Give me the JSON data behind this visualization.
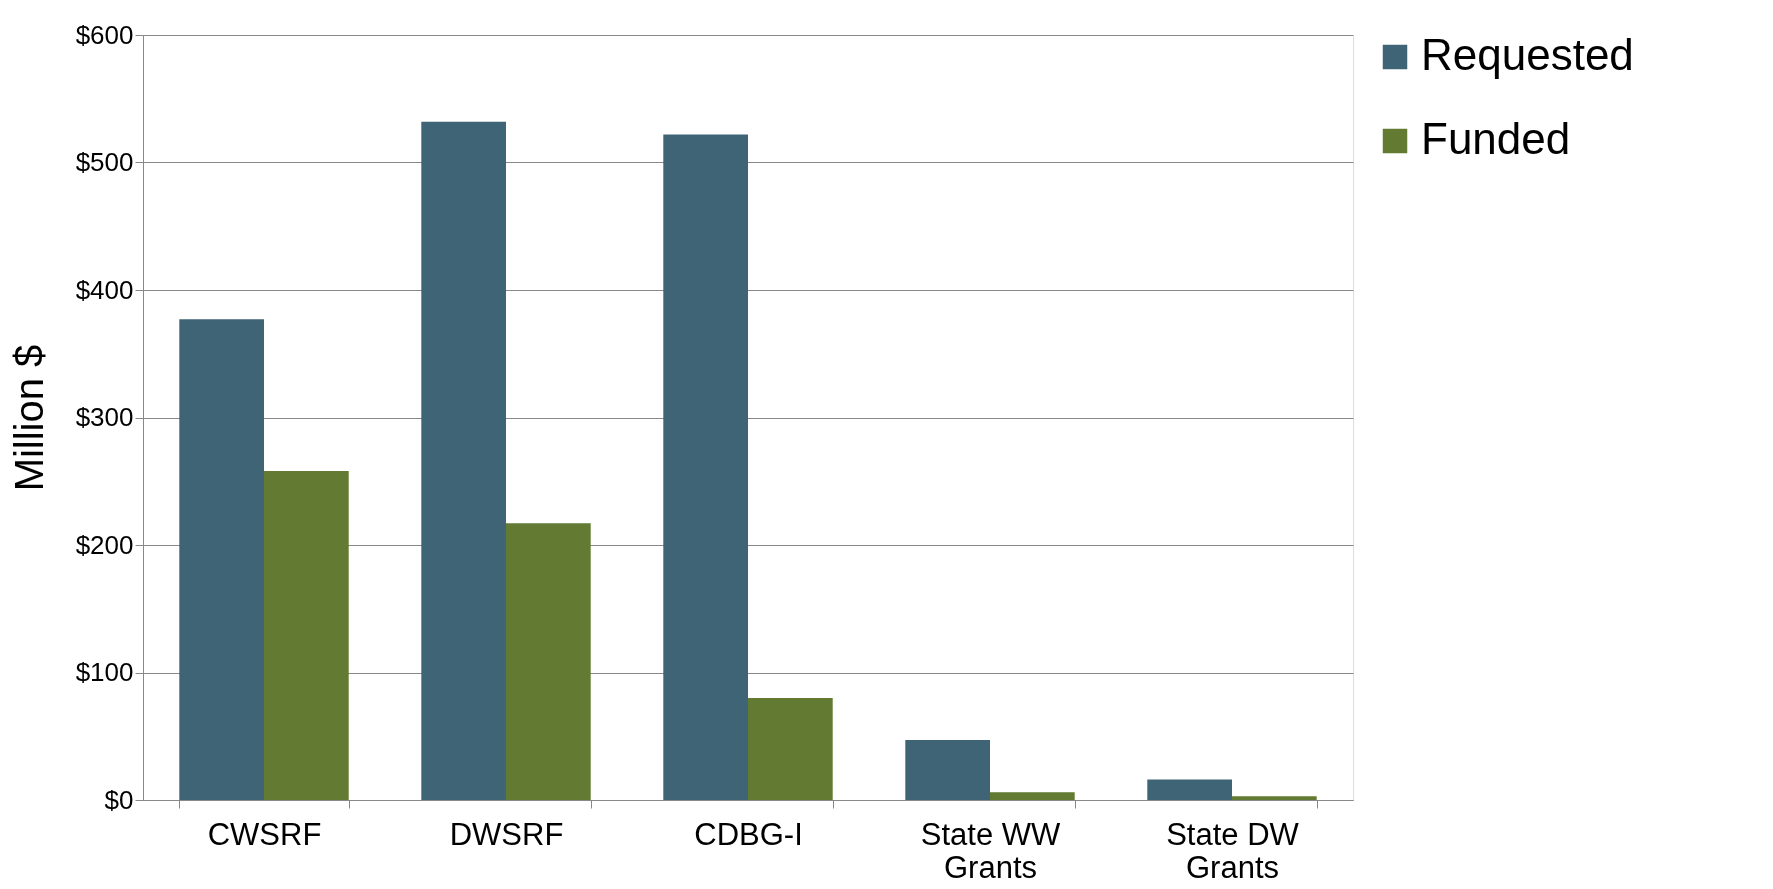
{
  "chart_data": {
    "type": "bar",
    "ylabel": "Million $",
    "categories": [
      "CWSRF",
      "DWSRF",
      "CDBG-I",
      "State WW Grants",
      "State DW Grants"
    ],
    "series": [
      {
        "name": "Requested",
        "color": "#3e6475",
        "values": [
          377,
          532,
          522,
          47,
          16
        ]
      },
      {
        "name": "Funded",
        "color": "#627a31",
        "values": [
          258,
          217,
          80,
          6,
          3
        ]
      }
    ],
    "ylim": [
      0,
      600
    ],
    "yticks": [
      {
        "value": 0,
        "label": "$0"
      },
      {
        "value": 100,
        "label": "$100"
      },
      {
        "value": 200,
        "label": "$200"
      },
      {
        "value": 300,
        "label": "$300"
      },
      {
        "value": 400,
        "label": "$400"
      },
      {
        "value": 500,
        "label": "$500"
      },
      {
        "value": 600,
        "label": "$600"
      }
    ],
    "grid": "y",
    "legend": "right"
  }
}
